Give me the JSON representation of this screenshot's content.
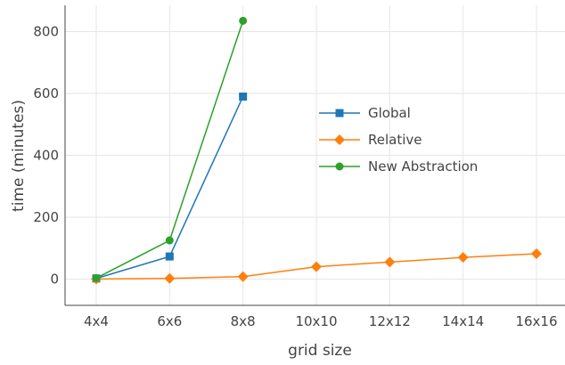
{
  "chart_data": {
    "type": "line",
    "xlabel": "grid size",
    "ylabel": "time (minutes)",
    "categories": [
      "4x4",
      "6x6",
      "8x8",
      "10x10",
      "12x12",
      "14x14",
      "16x16"
    ],
    "ylim": [
      -85,
      885
    ],
    "yticks": [
      0,
      200,
      400,
      600,
      800
    ],
    "grid": true,
    "legend": "inside-right",
    "series": [
      {
        "name": "Global",
        "color": "#1f77b4",
        "marker": "square",
        "values": [
          2,
          73,
          590,
          null,
          null,
          null,
          null
        ]
      },
      {
        "name": "Relative",
        "color": "#ff7f0e",
        "marker": "diamond",
        "values": [
          0,
          2,
          8,
          40,
          55,
          70,
          82
        ]
      },
      {
        "name": "New Abstraction",
        "color": "#2ca02c",
        "marker": "circle",
        "values": [
          3,
          125,
          835,
          null,
          null,
          null,
          null
        ]
      }
    ]
  }
}
